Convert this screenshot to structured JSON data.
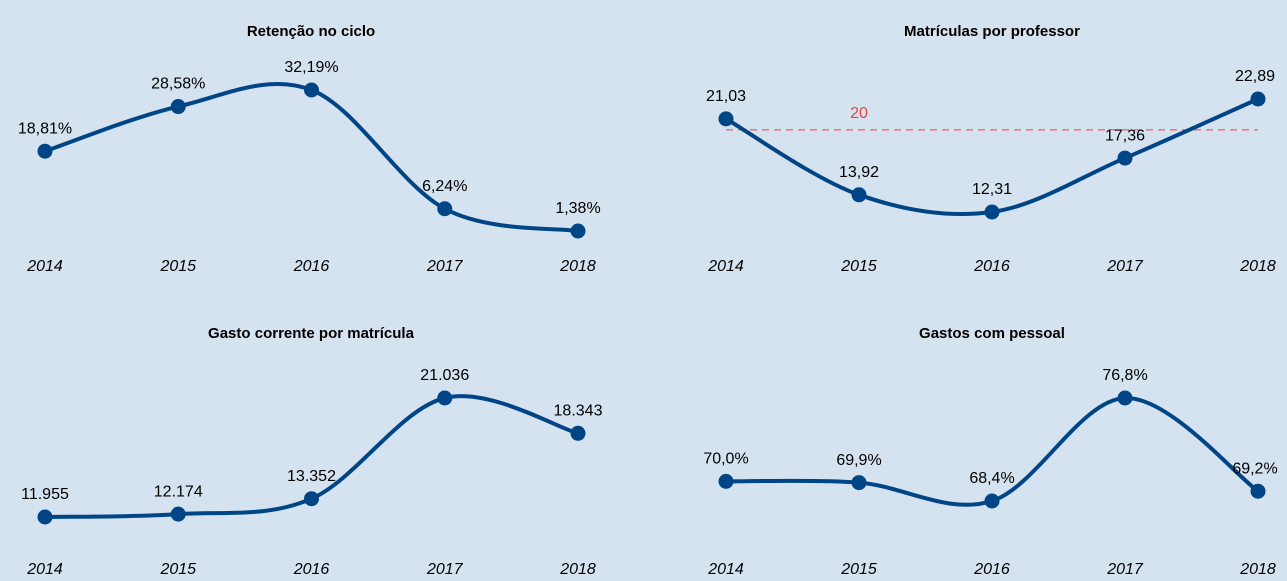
{
  "chart_data": [
    {
      "type": "line",
      "title": "Retenção no ciclo",
      "categories": [
        "2014",
        "2015",
        "2016",
        "2017",
        "2018"
      ],
      "values": [
        18.81,
        28.58,
        32.19,
        6.24,
        1.38
      ],
      "value_labels": [
        "18,81%",
        "28,58%",
        "32,19%",
        "6,24%",
        "1,38%"
      ],
      "color": "#004586"
    },
    {
      "type": "line",
      "title": "Matrículas por professor",
      "categories": [
        "2014",
        "2015",
        "2016",
        "2017",
        "2018"
      ],
      "values": [
        21.03,
        13.92,
        12.31,
        17.36,
        22.89
      ],
      "value_labels": [
        "21,03",
        "13,92",
        "12,31",
        "17,36",
        "22,89"
      ],
      "color": "#004586",
      "reference_line": 20,
      "reference_color": "#e8453c"
    },
    {
      "type": "line",
      "title": "Gasto corrente por matrícula",
      "categories": [
        "2014",
        "2015",
        "2016",
        "2017",
        "2018"
      ],
      "values": [
        11955,
        12174,
        13352,
        21036,
        18343
      ],
      "value_labels": [
        "11.955",
        "12.174",
        "13.352",
        "21.036",
        "18.343"
      ],
      "color": "#004586"
    },
    {
      "type": "line",
      "title": "Gastos com pessoal",
      "categories": [
        "2014",
        "2015",
        "2016",
        "2017",
        "2018"
      ],
      "values": [
        70.0,
        69.9,
        68.4,
        76.8,
        69.2
      ],
      "value_labels": [
        "70,0%",
        "69,9%",
        "68,4%",
        "76,8%",
        "69,2%"
      ],
      "color": "#004586"
    }
  ]
}
